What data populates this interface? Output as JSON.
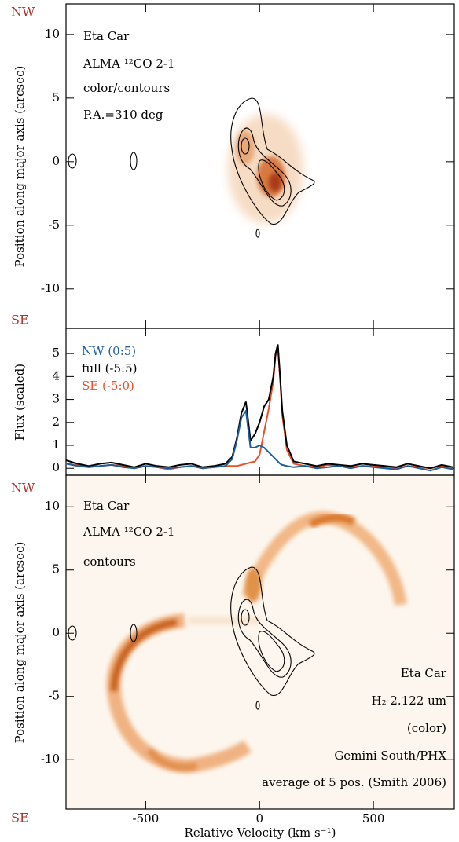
{
  "chart_data": [
    {
      "type": "image",
      "ylabel": "Position along major axis (arcsec)",
      "annotations": [
        "Eta Car",
        "ALMA ¹²CO 2-1",
        "color/contours",
        "P.A.=310 deg"
      ],
      "end_labels": [
        "NW",
        "SE"
      ],
      "xlim": [
        -850,
        855
      ],
      "xticks": [
        -500,
        0,
        500
      ],
      "ylim": [
        -13.1,
        12.4
      ],
      "yticks": [
        -10,
        -5,
        0,
        5,
        10
      ]
    },
    {
      "type": "line",
      "ylabel": "Flux (scaled)",
      "x": [
        -850,
        -800,
        -750,
        -700,
        -650,
        -600,
        -550,
        -500,
        -450,
        -400,
        -350,
        -300,
        -250,
        -200,
        -150,
        -120,
        -100,
        -80,
        -60,
        -40,
        -20,
        0,
        20,
        40,
        60,
        70,
        80,
        90,
        100,
        120,
        150,
        200,
        250,
        300,
        350,
        400,
        450,
        500,
        550,
        600,
        650,
        700,
        750,
        800,
        850
      ],
      "series": [
        {
          "name": "NW (0:5)",
          "color": "#1b5e9e",
          "values": [
            0.2,
            0.1,
            0.05,
            0.1,
            0.15,
            0.05,
            0.0,
            0.1,
            0.05,
            0.0,
            0.05,
            0.1,
            0.0,
            0.05,
            0.1,
            0.4,
            1.2,
            2.2,
            2.5,
            0.9,
            0.9,
            1.0,
            0.9,
            0.7,
            0.5,
            0.4,
            0.3,
            0.2,
            0.15,
            0.1,
            0.05,
            0.1,
            0.0,
            0.05,
            0.1,
            0.0,
            0.1,
            0.05,
            0.0,
            -0.05,
            0.1,
            0.0,
            -0.1,
            0.05,
            -0.05
          ]
        },
        {
          "name": "full (-5:5)",
          "color": "#000000",
          "values": [
            0.35,
            0.2,
            0.1,
            0.2,
            0.25,
            0.15,
            0.05,
            0.2,
            0.1,
            0.05,
            0.15,
            0.2,
            0.05,
            0.1,
            0.2,
            0.5,
            1.3,
            2.4,
            2.9,
            1.2,
            1.5,
            2.0,
            2.7,
            3.0,
            4.0,
            5.0,
            5.4,
            4.0,
            2.5,
            1.0,
            0.3,
            0.2,
            0.1,
            0.2,
            0.15,
            0.1,
            0.2,
            0.15,
            0.1,
            0.05,
            0.2,
            0.1,
            0.0,
            0.15,
            0.05
          ]
        },
        {
          "name": "SE (-5:0)",
          "color": "#e8502a",
          "values": [
            0.2,
            0.15,
            0.05,
            0.1,
            0.15,
            0.1,
            0.0,
            0.1,
            0.05,
            -0.05,
            0.05,
            0.1,
            0.0,
            0.05,
            0.1,
            0.1,
            0.1,
            0.15,
            0.2,
            0.25,
            0.3,
            0.6,
            1.6,
            2.6,
            3.8,
            4.9,
            5.3,
            3.9,
            2.3,
            0.8,
            0.2,
            0.1,
            0.05,
            0.15,
            0.1,
            0.05,
            0.1,
            0.1,
            0.05,
            0.0,
            0.1,
            0.05,
            0.0,
            0.1,
            0.0
          ]
        }
      ],
      "xlim": [
        -850,
        855
      ],
      "xticks": [
        -500,
        0,
        500
      ],
      "ylim": [
        -0.3,
        6.1
      ],
      "yticks": [
        0,
        1,
        2,
        3,
        4,
        5
      ]
    },
    {
      "type": "image",
      "ylabel": "Position along major axis (arcsec)",
      "xlabel": "Relative Velocity (km s⁻¹)",
      "annotations": [
        "Eta Car",
        "ALMA ¹²CO 2-1",
        "contours"
      ],
      "annotations_right": [
        "Eta Car",
        "H₂ 2.122 um",
        "(color)",
        "Gemini South/PHX",
        "average of 5 pos. (Smith 2006)"
      ],
      "end_labels": [
        "NW",
        "SE"
      ],
      "xlim": [
        -850,
        855
      ],
      "xticks": [
        -500,
        0,
        500
      ],
      "ylim": [
        -13.9,
        12.5
      ],
      "yticks": [
        -10,
        -5,
        0,
        5,
        10
      ]
    }
  ]
}
